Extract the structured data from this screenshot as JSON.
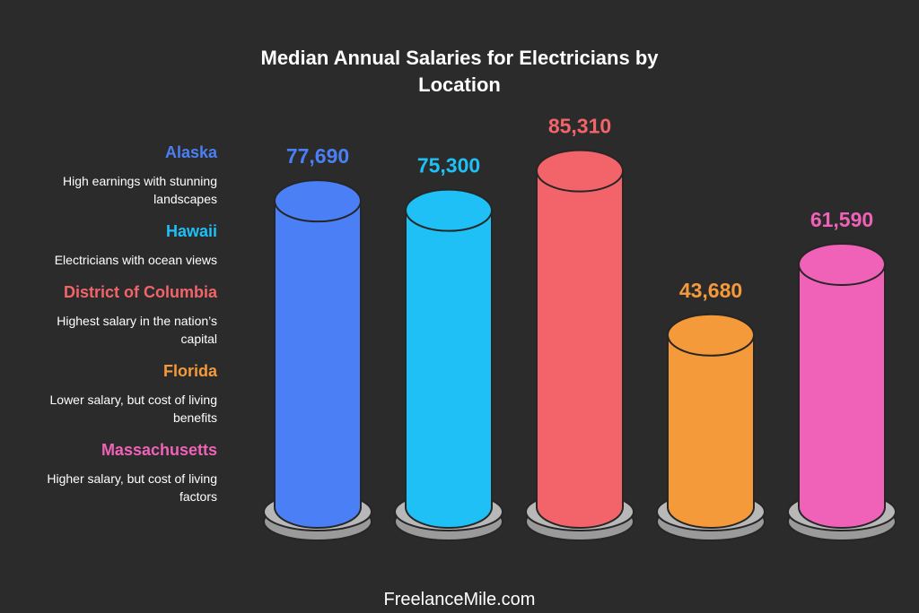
{
  "chart_data": {
    "type": "bar",
    "title_lines": [
      "Median Annual Salaries for Electricians by",
      "Location"
    ],
    "categories": [
      "Alaska",
      "Hawaii",
      "District of Columbia",
      "Florida",
      "Massachusetts"
    ],
    "values": [
      77690,
      75300,
      85310,
      43680,
      61590
    ],
    "value_labels": [
      "77,690",
      "75,300",
      "85,310",
      "43,680",
      "61,590"
    ],
    "colors": [
      "#4a7ff5",
      "#1ec0f5",
      "#f2646a",
      "#f59a3a",
      "#f062b8"
    ],
    "xlabel": "",
    "ylabel": "",
    "ylim": [
      0,
      100000
    ],
    "legend": [
      {
        "name": "Alaska",
        "desc_lines": [
          "High earnings with stunning",
          "landscapes"
        ]
      },
      {
        "name": "Hawaii",
        "desc_lines": [
          "Electricians with ocean views"
        ]
      },
      {
        "name": "District of Columbia",
        "desc_lines": [
          "Highest salary in the nation’s",
          "capital"
        ]
      },
      {
        "name": "Florida",
        "desc_lines": [
          "Lower salary, but cost of living",
          "benefits"
        ]
      },
      {
        "name": "Massachusetts",
        "desc_lines": [
          "Higher salary, but cost of living",
          "factors"
        ]
      }
    ]
  },
  "footer": {
    "text": "FreelanceMile.com"
  }
}
